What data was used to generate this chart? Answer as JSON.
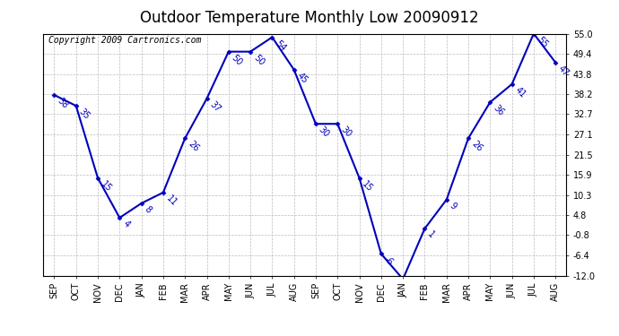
{
  "title": "Outdoor Temperature Monthly Low 20090912",
  "copyright": "Copyright 2009 Cartronics.com",
  "months": [
    "SEP",
    "OCT",
    "NOV",
    "DEC",
    "JAN",
    "FEB",
    "MAR",
    "APR",
    "MAY",
    "JUN",
    "JUL",
    "AUG",
    "SEP",
    "OCT",
    "NOV",
    "DEC",
    "JAN",
    "FEB",
    "MAR",
    "APR",
    "MAY",
    "JUN",
    "JUL",
    "AUG"
  ],
  "values": [
    38,
    35,
    15,
    4,
    8,
    11,
    26,
    37,
    50,
    50,
    54,
    45,
    30,
    30,
    15,
    -6,
    -13,
    1,
    9,
    26,
    36,
    41,
    55,
    47
  ],
  "ylim": [
    -12.0,
    55.0
  ],
  "yticks": [
    55.0,
    49.4,
    43.8,
    38.2,
    32.7,
    27.1,
    21.5,
    15.9,
    10.3,
    4.8,
    -0.8,
    -6.4,
    -12.0
  ],
  "line_color": "#0000bb",
  "bg_color": "#ffffff",
  "grid_color": "#bbbbbb",
  "title_fontsize": 12,
  "tick_fontsize": 7,
  "annot_fontsize": 7,
  "copyright_fontsize": 7
}
